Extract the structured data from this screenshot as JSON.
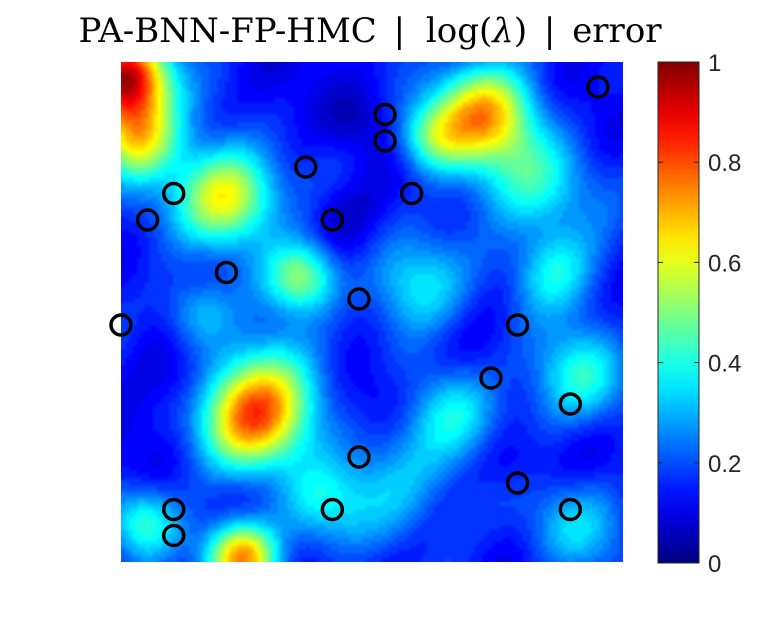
{
  "chart_data": {
    "type": "heatmap",
    "title": "PA-BNN-FP-HMC | log(λ) | error",
    "title_parts": [
      "PA-BNN-FP-HMC",
      "log",
      "λ",
      "error"
    ],
    "colormap": "jet",
    "colorbar": {
      "min": 0,
      "max": 1,
      "ticks": [
        0,
        0.2,
        0.4,
        0.6,
        0.8,
        1
      ],
      "tick_labels": [
        "0",
        "0.2",
        "0.4",
        "0.6",
        "0.8",
        "1"
      ]
    },
    "background_level": 0.13,
    "hotspots": [
      {
        "x": 0.01,
        "y": 0.97,
        "value": 0.9,
        "spread": 0.06
      },
      {
        "x": 0.03,
        "y": 0.85,
        "value": 0.55,
        "spread": 0.06
      },
      {
        "x": 0.21,
        "y": 0.73,
        "value": 0.58,
        "spread": 0.07
      },
      {
        "x": 0.36,
        "y": 0.57,
        "value": 0.42,
        "spread": 0.05
      },
      {
        "x": 0.29,
        "y": 0.32,
        "value": 0.55,
        "spread": 0.08
      },
      {
        "x": 0.25,
        "y": 0.27,
        "value": 0.28,
        "spread": 0.07
      },
      {
        "x": 0.72,
        "y": 0.9,
        "value": 0.58,
        "spread": 0.07
      },
      {
        "x": 0.62,
        "y": 0.85,
        "value": 0.35,
        "spread": 0.05
      },
      {
        "x": 0.82,
        "y": 0.76,
        "value": 0.3,
        "spread": 0.08
      },
      {
        "x": 0.86,
        "y": 0.58,
        "value": 0.27,
        "spread": 0.06
      },
      {
        "x": 0.58,
        "y": 0.55,
        "value": 0.25,
        "spread": 0.07
      },
      {
        "x": 0.66,
        "y": 0.3,
        "value": 0.27,
        "spread": 0.07
      },
      {
        "x": 0.92,
        "y": 0.37,
        "value": 0.28,
        "spread": 0.07
      },
      {
        "x": 0.55,
        "y": 0.15,
        "value": 0.22,
        "spread": 0.08
      },
      {
        "x": 0.4,
        "y": 0.12,
        "value": 0.2,
        "spread": 0.06
      },
      {
        "x": 0.24,
        "y": 0.01,
        "value": 0.7,
        "spread": 0.05
      },
      {
        "x": 0.04,
        "y": 0.08,
        "value": 0.3,
        "spread": 0.05
      },
      {
        "x": 0.9,
        "y": 0.07,
        "value": 0.22,
        "spread": 0.07
      },
      {
        "x": 0.15,
        "y": 0.5,
        "value": 0.22,
        "spread": 0.05
      }
    ],
    "coldspots": [
      {
        "x": 0.52,
        "y": 0.33,
        "value": -0.1,
        "spread": 0.06
      },
      {
        "x": 0.77,
        "y": 0.2,
        "value": -0.08,
        "spread": 0.05
      },
      {
        "x": 0.12,
        "y": 0.36,
        "value": -0.07,
        "spread": 0.05
      },
      {
        "x": 0.47,
        "y": 0.88,
        "value": -0.08,
        "spread": 0.05
      },
      {
        "x": 0.44,
        "y": 0.7,
        "value": -0.06,
        "spread": 0.05
      }
    ],
    "markers": [
      {
        "x": 0.95,
        "y": 0.95
      },
      {
        "x": 0.526,
        "y": 0.895
      },
      {
        "x": 0.526,
        "y": 0.842
      },
      {
        "x": 0.368,
        "y": 0.79
      },
      {
        "x": 0.579,
        "y": 0.737
      },
      {
        "x": 0.105,
        "y": 0.737
      },
      {
        "x": 0.053,
        "y": 0.684
      },
      {
        "x": 0.421,
        "y": 0.684
      },
      {
        "x": 0.21,
        "y": 0.579
      },
      {
        "x": 0.474,
        "y": 0.526
      },
      {
        "x": 0.0,
        "y": 0.474
      },
      {
        "x": 0.79,
        "y": 0.474
      },
      {
        "x": 0.737,
        "y": 0.368
      },
      {
        "x": 0.895,
        "y": 0.316
      },
      {
        "x": 0.474,
        "y": 0.21
      },
      {
        "x": 0.79,
        "y": 0.158
      },
      {
        "x": 0.105,
        "y": 0.105
      },
      {
        "x": 0.421,
        "y": 0.105
      },
      {
        "x": 0.895,
        "y": 0.105
      },
      {
        "x": 0.105,
        "y": 0.053
      }
    ]
  }
}
